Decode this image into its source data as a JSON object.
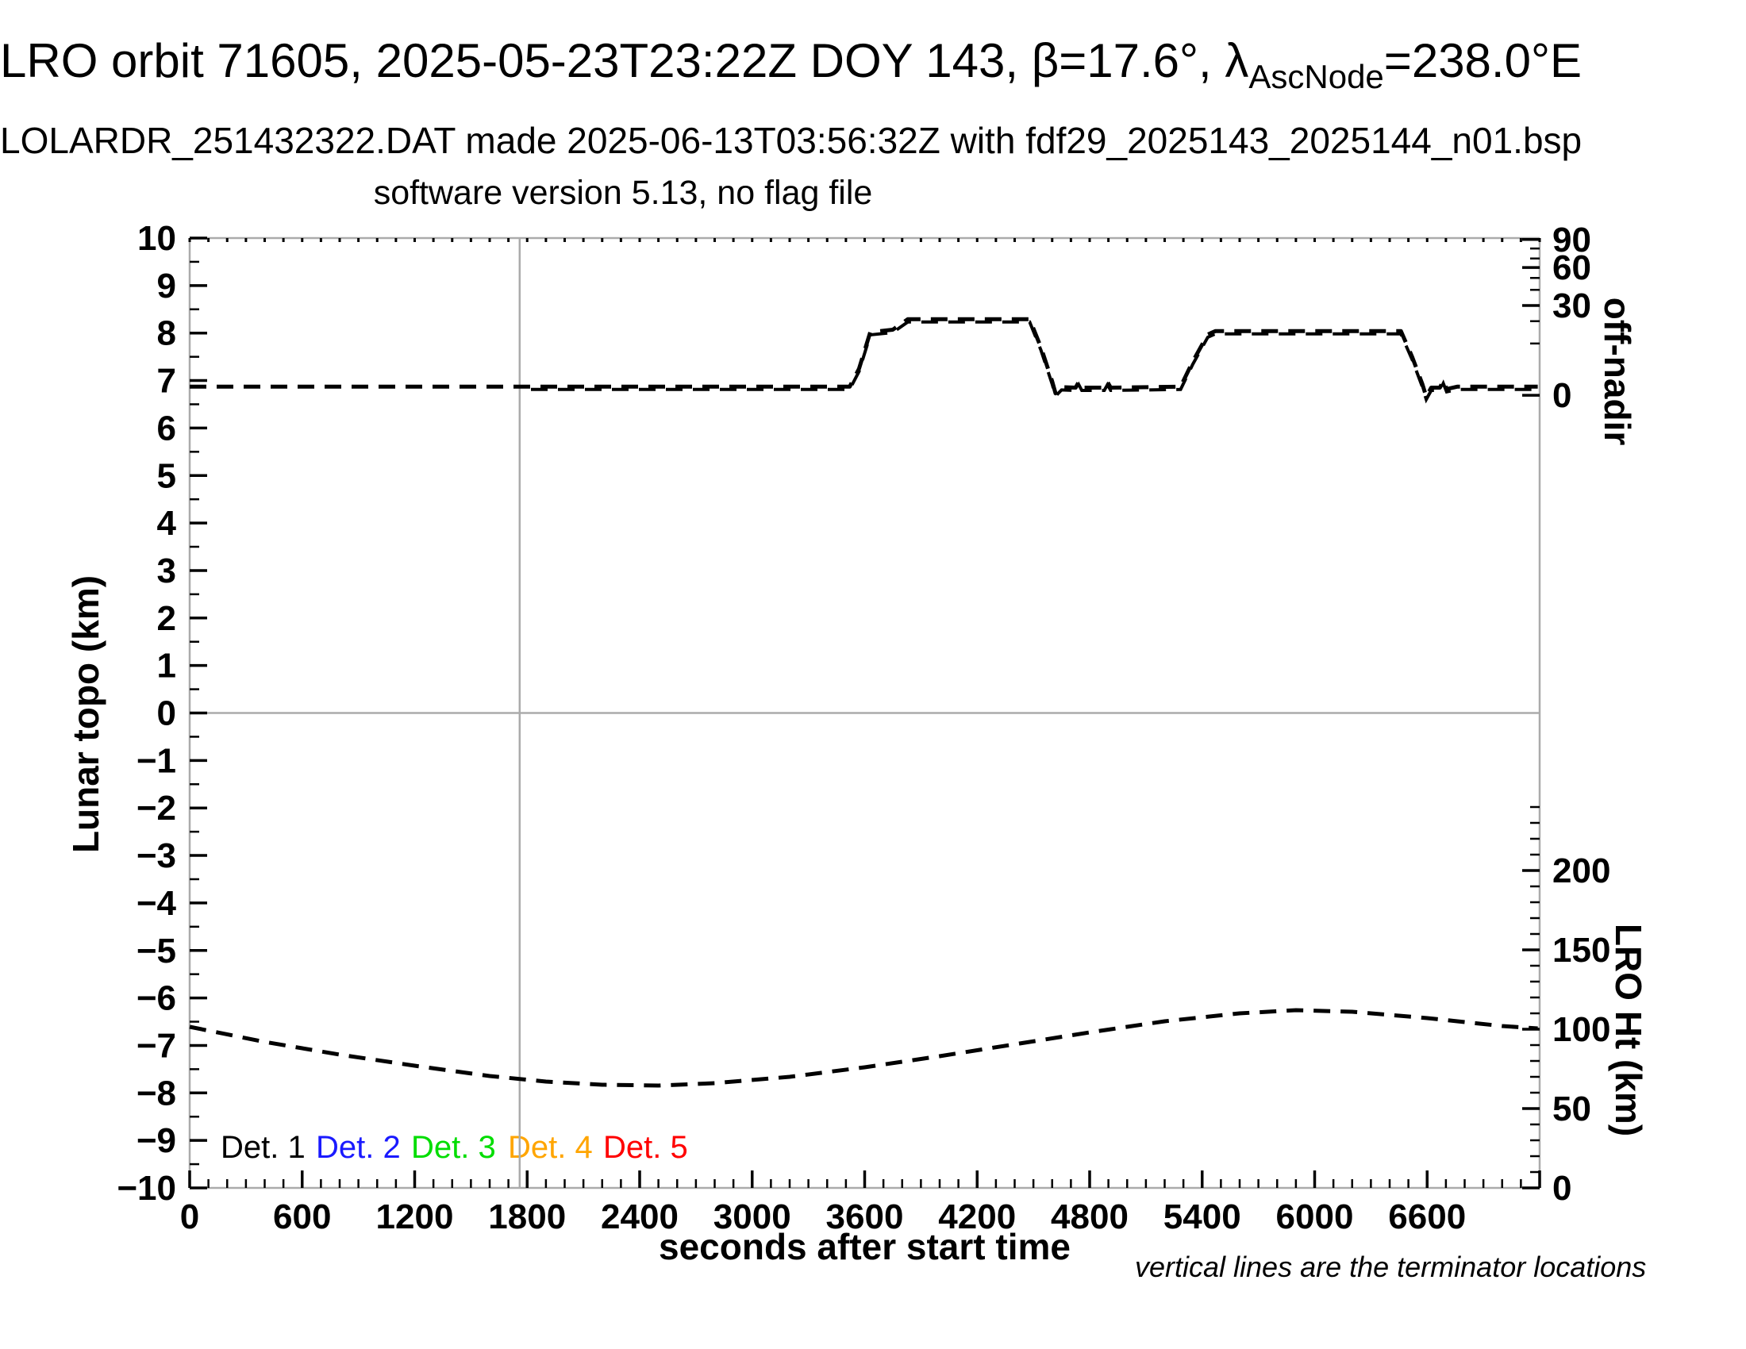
{
  "header": {
    "title_prefix": "LRO orbit 71605, 2025-05-23T23:22Z DOY 143, β=17.6°, λ",
    "title_subscript": "AscNode",
    "title_suffix": "=238.0°E",
    "subtitle": "LOLARDR_251432322.DAT made 2025-06-13T03:56:32Z with fdf29_2025143_2025144_n01.bsp",
    "subtitle2": "software version 5.13, no flag file"
  },
  "chart_data": {
    "type": "line",
    "x_axis": {
      "label": "seconds after start time",
      "min": 0,
      "max": 7200,
      "major_tick_interval": 600,
      "minor_tick_interval": 100,
      "labeled_ticks": [
        0,
        600,
        1200,
        1800,
        2400,
        3000,
        3600,
        4200,
        4800,
        5400,
        6000,
        6600
      ]
    },
    "y_left": {
      "label": "Lunar topo (km)",
      "min": -10,
      "max": 10,
      "major_tick_interval": 1,
      "minor_tick_interval": 0.5
    },
    "y_right_off_nadir": {
      "label": "off-nadir",
      "major_ticks": [
        {
          "value": 90,
          "v": 9.97
        },
        {
          "value": 60,
          "v": 9.38
        },
        {
          "value": 30,
          "v": 8.58
        },
        {
          "value": 0,
          "v": 6.69
        }
      ],
      "minor_ticks": [
        {
          "value": 80,
          "v": 9.78
        },
        {
          "value": 70,
          "v": 9.57
        },
        {
          "value": 50,
          "v": 9.16
        },
        {
          "value": 40,
          "v": 8.91
        },
        {
          "value": 20,
          "v": 8.25
        },
        {
          "value": 10,
          "v": 7.78
        }
      ]
    },
    "y_right_lro_ht": {
      "label": "LRO Ht (km)",
      "labeled_ticks": [
        200,
        150,
        100,
        50,
        0
      ],
      "major_tick_interval_km": 50,
      "minor_tick_interval_km": 10,
      "minor_tick_range_km": [
        0,
        240
      ],
      "left_units_per_km": 0.033417,
      "left_units_at_0km": -10
    },
    "zero_line_left_units": 0,
    "terminator_lines_s": [
      1760
    ],
    "series": [
      {
        "name": "off-nadir angle (detectors overplotted)",
        "color": "#000000",
        "dashed": true,
        "units": "left-axis",
        "points": [
          [
            0,
            6.87
          ],
          [
            3520,
            6.87
          ],
          [
            3570,
            7.25
          ],
          [
            3630,
            8.02
          ],
          [
            3750,
            8.07
          ],
          [
            3830,
            8.29
          ],
          [
            4480,
            8.29
          ],
          [
            4540,
            7.7
          ],
          [
            4600,
            6.98
          ],
          [
            4618,
            6.73
          ],
          [
            4650,
            6.86
          ],
          [
            4725,
            6.85
          ],
          [
            4742,
            6.97
          ],
          [
            4758,
            6.85
          ],
          [
            4878,
            6.85
          ],
          [
            4895,
            6.97
          ],
          [
            4912,
            6.85
          ],
          [
            5285,
            6.87
          ],
          [
            5350,
            7.4
          ],
          [
            5430,
            7.97
          ],
          [
            5470,
            8.04
          ],
          [
            6460,
            8.04
          ],
          [
            6520,
            7.5
          ],
          [
            6575,
            6.92
          ],
          [
            6595,
            6.66
          ],
          [
            6622,
            6.85
          ],
          [
            6668,
            6.85
          ],
          [
            6686,
            7.0
          ],
          [
            6704,
            6.82
          ],
          [
            6760,
            6.87
          ],
          [
            7190,
            6.87
          ]
        ]
      },
      {
        "name": "LRO height",
        "color": "#000000",
        "dashed": true,
        "units": "km",
        "points": [
          [
            0,
            101.5
          ],
          [
            400,
            92
          ],
          [
            800,
            84
          ],
          [
            1200,
            77
          ],
          [
            1600,
            70.5
          ],
          [
            1900,
            67
          ],
          [
            2200,
            65
          ],
          [
            2500,
            64.5
          ],
          [
            2800,
            66
          ],
          [
            3200,
            70
          ],
          [
            3600,
            76
          ],
          [
            4000,
            83
          ],
          [
            4400,
            90.5
          ],
          [
            4800,
            98
          ],
          [
            5200,
            105
          ],
          [
            5600,
            110
          ],
          [
            5900,
            112
          ],
          [
            6200,
            111
          ],
          [
            6600,
            107
          ],
          [
            7000,
            102
          ],
          [
            7190,
            100.5
          ]
        ]
      }
    ],
    "legend": {
      "items": [
        {
          "label": "Det. 1",
          "color": "#000000"
        },
        {
          "label": "Det. 2",
          "color": "#1a1aff"
        },
        {
          "label": "Det. 3",
          "color": "#00dd00"
        },
        {
          "label": "Det. 4",
          "color": "#ffa500"
        },
        {
          "label": "Det. 5",
          "color": "#ff0000"
        }
      ]
    },
    "note": "vertical lines are the terminator locations",
    "frame_color": "#ababab"
  }
}
